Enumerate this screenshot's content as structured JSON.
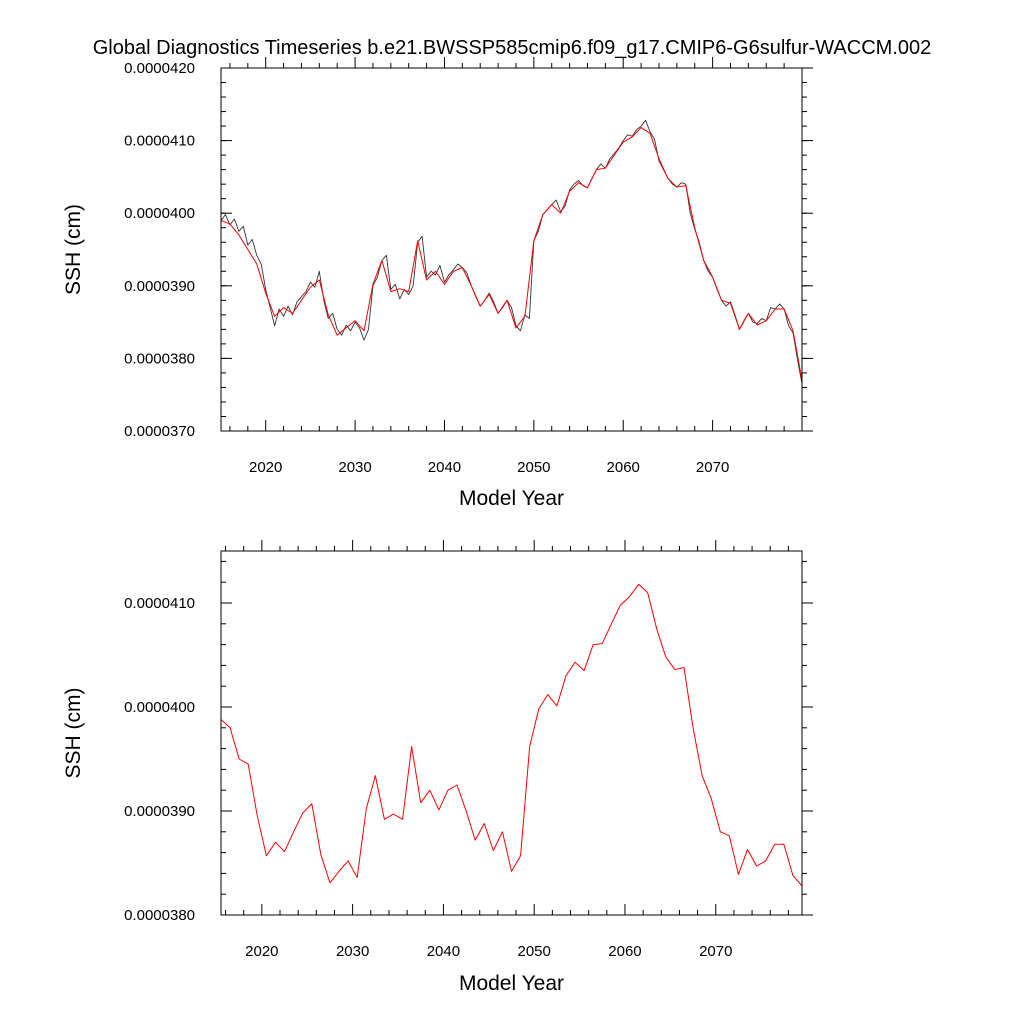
{
  "figure": {
    "title": "Global Diagnostics Timeseries b.e21.BWSSP585cmip6.f09_g17.CMIP6-G6sulfur-WACCM.002"
  },
  "chart_data": [
    {
      "type": "line",
      "xlabel": "Model Year",
      "ylabel": "SSH (cm)",
      "xlim": [
        2015,
        2080
      ],
      "ylim": [
        3.7e-05,
        4.2e-05
      ],
      "xticks": [
        2020,
        2030,
        2040,
        2050,
        2060,
        2070
      ],
      "xtick_labels": [
        "2020",
        "2030",
        "2040",
        "2050",
        "2060",
        "2070"
      ],
      "yticks": [
        3.7e-05,
        3.8e-05,
        3.9e-05,
        4e-05,
        4.1e-05,
        4.2e-05
      ],
      "ytick_labels": [
        "0.0000370",
        "0.0000380",
        "0.0000390",
        "0.0000400",
        "0.0000410",
        "0.0000420"
      ],
      "grid": false,
      "series": [
        {
          "color": "#333333",
          "x": [
            2015.0,
            2015.5,
            2016.0,
            2016.5,
            2017.0,
            2017.5,
            2018.0,
            2018.5,
            2019.0,
            2019.5,
            2020.0,
            2020.5,
            2021.0,
            2021.5,
            2022.0,
            2022.5,
            2023.0,
            2023.5,
            2024.0,
            2024.5,
            2025.0,
            2025.5,
            2026.0,
            2026.5,
            2027.0,
            2027.5,
            2028.0,
            2028.5,
            2029.0,
            2029.5,
            2030.0,
            2030.5,
            2031.0,
            2031.5,
            2032.0,
            2032.5,
            2033.0,
            2033.5,
            2034.0,
            2034.5,
            2035.0,
            2035.5,
            2036.0,
            2036.5,
            2037.0,
            2037.5,
            2038.0,
            2038.5,
            2039.0,
            2039.5,
            2040.0,
            2040.5,
            2041.0,
            2041.5,
            2042.0,
            2042.5,
            2043.0,
            2043.5,
            2044.0,
            2044.5,
            2045.0,
            2045.5,
            2046.0,
            2046.5,
            2047.0,
            2047.5,
            2048.0,
            2048.5,
            2049.0,
            2049.5,
            2050.0,
            2050.5,
            2051.0,
            2051.5,
            2052.0,
            2052.5,
            2053.0,
            2053.5,
            2054.0,
            2054.5,
            2055.0,
            2055.5,
            2056.0,
            2056.5,
            2057.0,
            2057.5,
            2058.0,
            2058.5,
            2059.0,
            2059.5,
            2060.0,
            2060.5,
            2061.0,
            2061.5,
            2062.0,
            2062.5,
            2063.0,
            2063.5,
            2064.0,
            2064.5,
            2065.0,
            2065.5,
            2066.0,
            2066.5,
            2067.0,
            2067.5,
            2068.0,
            2068.5,
            2069.0,
            2069.5,
            2070.0,
            2070.5,
            2071.0,
            2071.5,
            2072.0,
            2072.5,
            2073.0,
            2073.5,
            2074.0,
            2074.5,
            2075.0,
            2075.5,
            2076.0,
            2076.5,
            2077.0,
            2077.5,
            2078.0,
            2078.5,
            2079.0,
            2079.5,
            2080.0
          ],
          "y": [
            3.99e-05,
            3.998e-05,
            3.984e-05,
            3.992e-05,
            3.975e-05,
            3.982e-05,
            3.956e-05,
            3.964e-05,
            3.942e-05,
            3.93e-05,
            3.895e-05,
            3.87e-05,
            3.845e-05,
            3.868e-05,
            3.858e-05,
            3.872e-05,
            3.86e-05,
            3.878e-05,
            3.885e-05,
            3.892e-05,
            3.905e-05,
            3.898e-05,
            3.92e-05,
            3.88e-05,
            3.855e-05,
            3.862e-05,
            3.84e-05,
            3.832e-05,
            3.846e-05,
            3.838e-05,
            3.85e-05,
            3.842e-05,
            3.825e-05,
            3.84e-05,
            3.9e-05,
            3.912e-05,
            3.935e-05,
            3.942e-05,
            3.895e-05,
            3.902e-05,
            3.882e-05,
            3.895e-05,
            3.888e-05,
            3.9e-05,
            3.96e-05,
            3.968e-05,
            3.912e-05,
            3.92e-05,
            3.915e-05,
            3.928e-05,
            3.905e-05,
            3.915e-05,
            3.922e-05,
            3.93e-05,
            3.925e-05,
            3.918e-05,
            3.9e-05,
            3.885e-05,
            3.872e-05,
            3.88e-05,
            3.89e-05,
            3.878e-05,
            3.862e-05,
            3.87e-05,
            3.88e-05,
            3.87e-05,
            3.845e-05,
            3.838e-05,
            3.86e-05,
            3.855e-05,
            3.962e-05,
            3.975e-05,
            3.998e-05,
            4.005e-05,
            4.012e-05,
            4.018e-05,
            4.002e-05,
            4.01e-05,
            4.032e-05,
            4.04e-05,
            4.045e-05,
            4.038e-05,
            4.035e-05,
            4.048e-05,
            4.06e-05,
            4.068e-05,
            4.062e-05,
            4.075e-05,
            4.082e-05,
            4.09e-05,
            4.1e-05,
            4.108e-05,
            4.106e-05,
            4.115e-05,
            4.12e-05,
            4.128e-05,
            4.112e-05,
            4.102e-05,
            4.072e-05,
            4.06e-05,
            4.048e-05,
            4.04e-05,
            4.036e-05,
            4.042e-05,
            4.04e-05,
            4e-05,
            3.978e-05,
            3.96e-05,
            3.935e-05,
            3.92e-05,
            3.912e-05,
            3.895e-05,
            3.88e-05,
            3.872e-05,
            3.878e-05,
            3.86e-05,
            3.84e-05,
            3.852e-05,
            3.862e-05,
            3.85e-05,
            3.848e-05,
            3.855e-05,
            3.852e-05,
            3.87e-05,
            3.868e-05,
            3.875e-05,
            3.868e-05,
            3.845e-05,
            3.835e-05,
            3.798e-05,
            3.765e-05
          ]
        },
        {
          "color": "#ff0000",
          "x": [
            2015.0,
            2016.0,
            2017.0,
            2018.0,
            2019.0,
            2020.0,
            2021.0,
            2022.0,
            2023.0,
            2024.0,
            2025.0,
            2026.0,
            2027.0,
            2028.0,
            2029.0,
            2030.0,
            2031.0,
            2032.0,
            2033.0,
            2034.0,
            2035.0,
            2036.0,
            2037.0,
            2038.0,
            2039.0,
            2040.0,
            2041.0,
            2042.0,
            2043.0,
            2044.0,
            2045.0,
            2046.0,
            2047.0,
            2048.0,
            2049.0,
            2050.0,
            2051.0,
            2052.0,
            2053.0,
            2054.0,
            2055.0,
            2056.0,
            2057.0,
            2058.0,
            2059.0,
            2060.0,
            2061.0,
            2062.0,
            2063.0,
            2064.0,
            2065.0,
            2066.0,
            2067.0,
            2068.0,
            2069.0,
            2070.0,
            2071.0,
            2072.0,
            2073.0,
            2074.0,
            2075.0,
            2076.0,
            2077.0,
            2078.0,
            2079.0,
            2080.0
          ],
          "y": [
            3.99e-05,
            3.985e-05,
            3.97e-05,
            3.95e-05,
            3.93e-05,
            3.89e-05,
            3.858e-05,
            3.87e-05,
            3.862e-05,
            3.88e-05,
            3.898e-05,
            3.908e-05,
            3.86e-05,
            3.832e-05,
            3.842e-05,
            3.852e-05,
            3.838e-05,
            3.902e-05,
            3.935e-05,
            3.892e-05,
            3.896e-05,
            3.892e-05,
            3.962e-05,
            3.908e-05,
            3.92e-05,
            3.902e-05,
            3.92e-05,
            3.925e-05,
            3.9e-05,
            3.872e-05,
            3.888e-05,
            3.862e-05,
            3.88e-05,
            3.842e-05,
            3.858e-05,
            3.962e-05,
            3.998e-05,
            4.012e-05,
            4e-05,
            4.03e-05,
            4.042e-05,
            4.035e-05,
            4.06e-05,
            4.062e-05,
            4.08e-05,
            4.098e-05,
            4.105e-05,
            4.118e-05,
            4.11e-05,
            4.075e-05,
            4.048e-05,
            4.036e-05,
            4.038e-05,
            3.98e-05,
            3.935e-05,
            3.912e-05,
            3.88e-05,
            3.876e-05,
            3.84e-05,
            3.862e-05,
            3.846e-05,
            3.852e-05,
            3.868e-05,
            3.868e-05,
            3.838e-05,
            3.77e-05
          ]
        }
      ]
    },
    {
      "type": "line",
      "xlabel": "Model Year",
      "ylabel": "SSH (cm)",
      "xlim": [
        2015.5,
        2079.5
      ],
      "ylim": [
        3.8e-05,
        4.15e-05
      ],
      "xticks": [
        2020,
        2030,
        2040,
        2050,
        2060,
        2070
      ],
      "xtick_labels": [
        "2020",
        "2030",
        "2040",
        "2050",
        "2060",
        "2070"
      ],
      "yticks": [
        3.8e-05,
        3.9e-05,
        4e-05,
        4.1e-05
      ],
      "ytick_labels": [
        "0.0000380",
        "0.0000390",
        "0.0000400",
        "0.0000410"
      ],
      "grid": false,
      "series": [
        {
          "color": "#ff0000",
          "x": [
            2015.5,
            2016.5,
            2017.5,
            2018.5,
            2019.5,
            2020.5,
            2021.5,
            2022.5,
            2023.5,
            2024.5,
            2025.5,
            2026.5,
            2027.5,
            2028.5,
            2029.5,
            2030.5,
            2031.5,
            2032.5,
            2033.5,
            2034.5,
            2035.5,
            2036.5,
            2037.5,
            2038.5,
            2039.5,
            2040.5,
            2041.5,
            2042.5,
            2043.5,
            2044.5,
            2045.5,
            2046.5,
            2047.5,
            2048.5,
            2049.5,
            2050.5,
            2051.5,
            2052.5,
            2053.5,
            2054.5,
            2055.5,
            2056.5,
            2057.5,
            2058.5,
            2059.5,
            2060.5,
            2061.5,
            2062.5,
            2063.5,
            2064.5,
            2065.5,
            2066.5,
            2067.5,
            2068.5,
            2069.5,
            2070.5,
            2071.5,
            2072.5,
            2073.5,
            2074.5,
            2075.5,
            2076.5,
            2077.5,
            2078.5,
            2079.5
          ],
          "y": [
            3.988e-05,
            3.98e-05,
            3.95e-05,
            3.945e-05,
            3.895e-05,
            3.857e-05,
            3.87e-05,
            3.861e-05,
            3.88e-05,
            3.898e-05,
            3.907e-05,
            3.858e-05,
            3.831e-05,
            3.842e-05,
            3.852e-05,
            3.836e-05,
            3.902e-05,
            3.934e-05,
            3.892e-05,
            3.897e-05,
            3.892e-05,
            3.962e-05,
            3.908e-05,
            3.92e-05,
            3.901e-05,
            3.92e-05,
            3.925e-05,
            3.9e-05,
            3.872e-05,
            3.888e-05,
            3.862e-05,
            3.88e-05,
            3.842e-05,
            3.857e-05,
            3.962e-05,
            3.998e-05,
            4.012e-05,
            4.001e-05,
            4.03e-05,
            4.043e-05,
            4.035e-05,
            4.06e-05,
            4.061e-05,
            4.08e-05,
            4.098e-05,
            4.106e-05,
            4.118e-05,
            4.11e-05,
            4.075e-05,
            4.048e-05,
            4.036e-05,
            4.038e-05,
            3.98e-05,
            3.934e-05,
            3.912e-05,
            3.88e-05,
            3.876e-05,
            3.839e-05,
            3.863e-05,
            3.847e-05,
            3.852e-05,
            3.868e-05,
            3.868e-05,
            3.838e-05,
            3.828e-05
          ]
        }
      ]
    }
  ]
}
